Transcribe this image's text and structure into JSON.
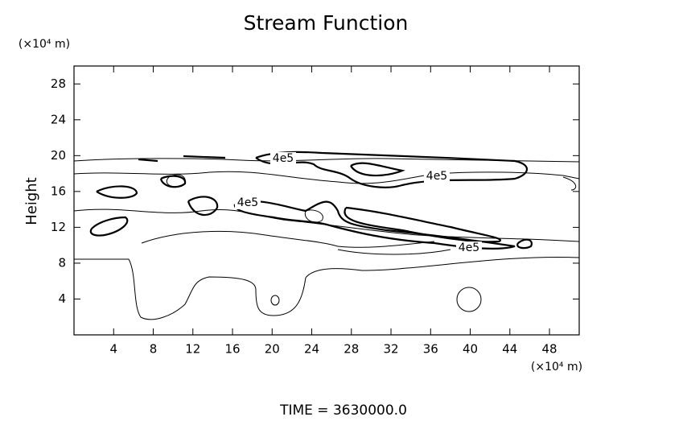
{
  "chart_data": {
    "type": "contour",
    "title": "Stream Function",
    "ylabel": "Height",
    "y_unit": "(×10⁴ m)",
    "x_unit": "(×10⁴ m)",
    "xlim": [
      0,
      51
    ],
    "xticks": [
      4,
      8,
      12,
      16,
      20,
      24,
      28,
      32,
      36,
      40,
      44,
      48
    ],
    "ylim": [
      0,
      30
    ],
    "yticks": [
      4,
      8,
      12,
      16,
      20,
      24,
      28
    ],
    "contour_labels": [
      "4e5",
      "4e5",
      "4e5",
      "4e5"
    ],
    "footer": "TIME = 3630000.0"
  }
}
